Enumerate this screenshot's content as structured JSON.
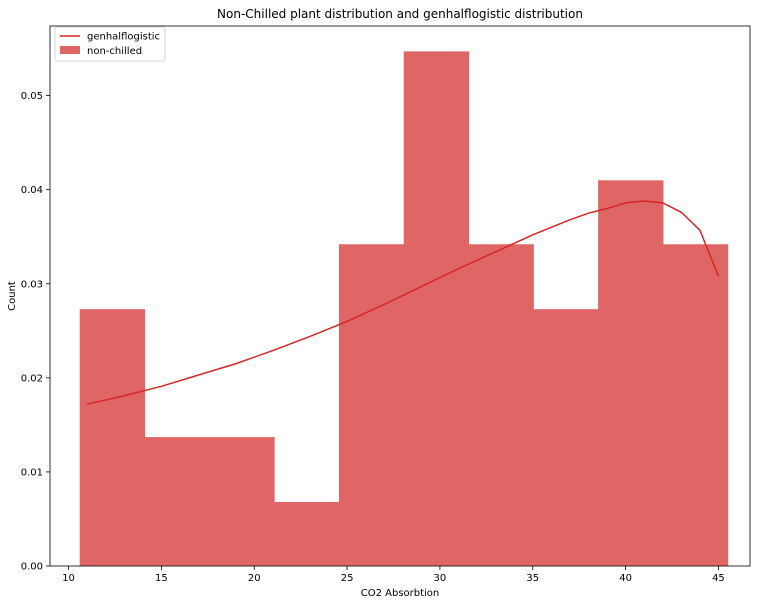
{
  "chart_data": {
    "type": "bar",
    "title": "Non-Chilled plant distribution and genhalflogistic distribution",
    "xlabel": "CO2 Absorbtion",
    "ylabel": "Count",
    "xlim": [
      9.0,
      46.7
    ],
    "ylim": [
      0.0,
      0.0574
    ],
    "xticks": [
      10,
      15,
      20,
      25,
      30,
      35,
      40,
      45
    ],
    "xtick_labels": [
      "10",
      "15",
      "20",
      "25",
      "30",
      "35",
      "40",
      "45"
    ],
    "yticks": [
      0.0,
      0.01,
      0.02,
      0.03,
      0.04,
      0.05
    ],
    "ytick_labels": [
      "0.00",
      "0.01",
      "0.02",
      "0.03",
      "0.04",
      "0.05"
    ],
    "grid": false,
    "legend_position": "top-left",
    "histogram": {
      "name": "non-chilled",
      "color": "#e06666",
      "bin_edges": [
        10.6,
        14.09,
        17.58,
        21.07,
        24.56,
        28.05,
        31.54,
        35.03,
        38.52,
        42.01,
        45.5
      ],
      "values": [
        0.0273,
        0.0137,
        0.0137,
        0.0068,
        0.0342,
        0.0547,
        0.0342,
        0.0273,
        0.041,
        0.0342
      ]
    },
    "line": {
      "name": "genhalflogistic",
      "color": "#d62728",
      "x": [
        11,
        13,
        15,
        17,
        19,
        21,
        23,
        25,
        27,
        29,
        31,
        33,
        35,
        37,
        38,
        39,
        40,
        41,
        42,
        43,
        44,
        45
      ],
      "y": [
        0.0172,
        0.0181,
        0.0191,
        0.0203,
        0.0215,
        0.0229,
        0.0244,
        0.026,
        0.0278,
        0.0297,
        0.0316,
        0.0334,
        0.0352,
        0.0368,
        0.0375,
        0.038,
        0.0386,
        0.0388,
        0.0386,
        0.0376,
        0.0357,
        0.0308
      ]
    }
  }
}
